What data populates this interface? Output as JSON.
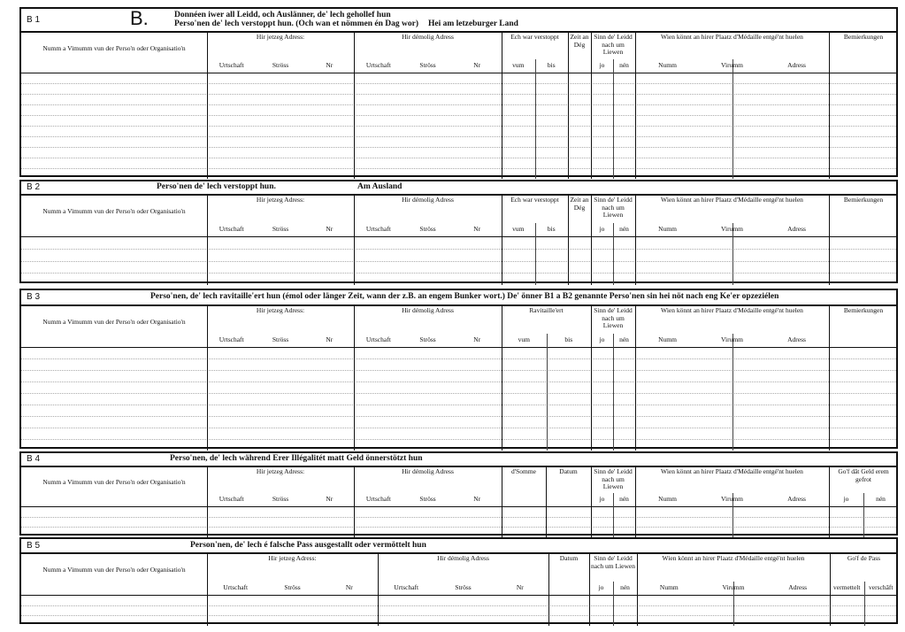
{
  "sections": [
    {
      "label": "B 1",
      "letter": "B.",
      "title_lines": [
        "Donnéen iwer all Leidd, och Auslänner, de' lech gehollef hun",
        "Perso'nen de' lech verstoppt hun. (Och wan et nömmen én Dag wor)"
      ],
      "title_right": "Hei am letzeburger Land",
      "groups": [
        {
          "label": "Numm a Vimumm vun der Perso'n oder Organisatio'n",
          "sub": []
        },
        {
          "label": "Hir jetzeg Adress:",
          "sub": [
            "Urtschaft",
            "Ströss",
            "Nr"
          ]
        },
        {
          "label": "Hir démolig Adress",
          "sub": [
            "Urtschaft",
            "Ströss",
            "Nr"
          ]
        },
        {
          "label": "Ech war verstoppt",
          "sub": [
            "vum",
            "bis"
          ]
        },
        {
          "label": "Zeit an Dég",
          "sub": []
        },
        {
          "label": "Sinn de' Leidd nach um Liewen",
          "sub": [
            "jo",
            "nén"
          ]
        },
        {
          "label": "Wien könnt an hirer Plaatz d'Médaille entgé'nt huelen",
          "sub": [
            "Numm",
            "Virumm",
            "Adress"
          ]
        },
        {
          "label": "Bemierkungen",
          "sub": []
        }
      ]
    },
    {
      "label": "B 2",
      "title_lines": [
        "Perso'nen de' lech verstoppt hun."
      ],
      "title_right": "Am Ausland",
      "groups": [
        {
          "label": "Numm a Vimumm vun der Perso'n oder Organisatio'n",
          "sub": []
        },
        {
          "label": "Hir jetzeg Adress:",
          "sub": [
            "Urtschaft",
            "Ströss",
            "Nr"
          ]
        },
        {
          "label": "Hir démolig Adress",
          "sub": [
            "Urtschaft",
            "Ströss",
            "Nr"
          ]
        },
        {
          "label": "Ech war verstoppt",
          "sub": [
            "vum",
            "bis"
          ]
        },
        {
          "label": "Zeit an Dég",
          "sub": []
        },
        {
          "label": "Sinn de' Leidd nach um Liewen",
          "sub": [
            "jo",
            "nén"
          ]
        },
        {
          "label": "Wien könnt an hirer Plaatz d'Médaille entgé'nt huelen",
          "sub": [
            "Numm",
            "Virumm",
            "Adress"
          ]
        },
        {
          "label": "Bemierkungen",
          "sub": []
        }
      ]
    },
    {
      "label": "B 3",
      "title_lines": [
        "Perso'nen, de' lech ravitaille'ert hun (émol oder länger Zeit, wann der z.B. an engem Bunker wort.)  De' önner B1 a B2 genannte Perso'nen sin hei nöt nach eng Ke'er opzeziélen"
      ],
      "title_right": "",
      "groups": [
        {
          "label": "Numm a Vimumm vun der Perso'n oder Organisatio'n",
          "sub": []
        },
        {
          "label": "Hir jetzeg Adress:",
          "sub": [
            "Urtschaft",
            "Ströss",
            "Nr"
          ]
        },
        {
          "label": "Hir démolig Adress",
          "sub": [
            "Urtschaft",
            "Ströss",
            "Nr"
          ]
        },
        {
          "label": "Ravitaille'ert",
          "sub": [
            "vum",
            "bis"
          ]
        },
        {
          "label": "Sinn de' Leidd nach um Liewen",
          "sub": [
            "jo",
            "nén"
          ]
        },
        {
          "label": "Wien könnt an hirer Plaatz d'Médaille entgé'nt huelen",
          "sub": [
            "Numm",
            "Virumm",
            "Adress"
          ]
        },
        {
          "label": "Bemierkungen",
          "sub": []
        }
      ]
    },
    {
      "label": "B 4",
      "title_lines": [
        "Perso'nen, de' lech während Erer Illégalitét matt Geld önnerstötzt hun"
      ],
      "title_right": "",
      "groups": [
        {
          "label": "Numm a Vimumm vun der Perso'n oder Organisatio'n",
          "sub": []
        },
        {
          "label": "Hir jetzeg Adress:",
          "sub": [
            "Urtschaft",
            "Ströss",
            "Nr"
          ]
        },
        {
          "label": "Hir démolig Adress",
          "sub": [
            "Urtschaft",
            "Ströss",
            "Nr"
          ]
        },
        {
          "label": "d'Somme",
          "sub": []
        },
        {
          "label": "Datum",
          "sub": []
        },
        {
          "label": "Sinn de' Leidd nach um Liewen",
          "sub": [
            "jo",
            "nén"
          ]
        },
        {
          "label": "Wien könnt an hirer Plaatz d'Médaille entgé'nt huelen",
          "sub": [
            "Numm",
            "Virumm",
            "Adress"
          ]
        },
        {
          "label": "Go'f dât Geld erem gefrot",
          "sub": [
            "jo",
            "nén"
          ]
        }
      ]
    },
    {
      "label": "B 5",
      "title_lines": [
        "Person'nen, de' lech é falsche Pass ausgestallt oder  vermöttelt hun"
      ],
      "title_right": "",
      "groups": [
        {
          "label": "Numm a Vimumm vun der Perso'n oder Organisatio'n",
          "sub": []
        },
        {
          "label": "Hir jetzeg Adress:",
          "sub": [
            "Urtschaft",
            "Ströss",
            "Nr"
          ]
        },
        {
          "label": "Hir démolig Adress",
          "sub": [
            "Urtschaft",
            "Ströss",
            "Nr"
          ]
        },
        {
          "label": "Datum",
          "sub": []
        },
        {
          "label": "Sinn de' Leidd nach um Liewen",
          "sub": [
            "jo",
            "nén"
          ]
        },
        {
          "label": "Wien könnt an hirer Plaatz d'Médaille entgé'nt huelen",
          "sub": [
            "Numm",
            "Virumm",
            "Adress"
          ]
        },
        {
          "label": "Go'f de Pass",
          "sub": [
            "vermettelt",
            "verschâft"
          ]
        }
      ]
    }
  ]
}
